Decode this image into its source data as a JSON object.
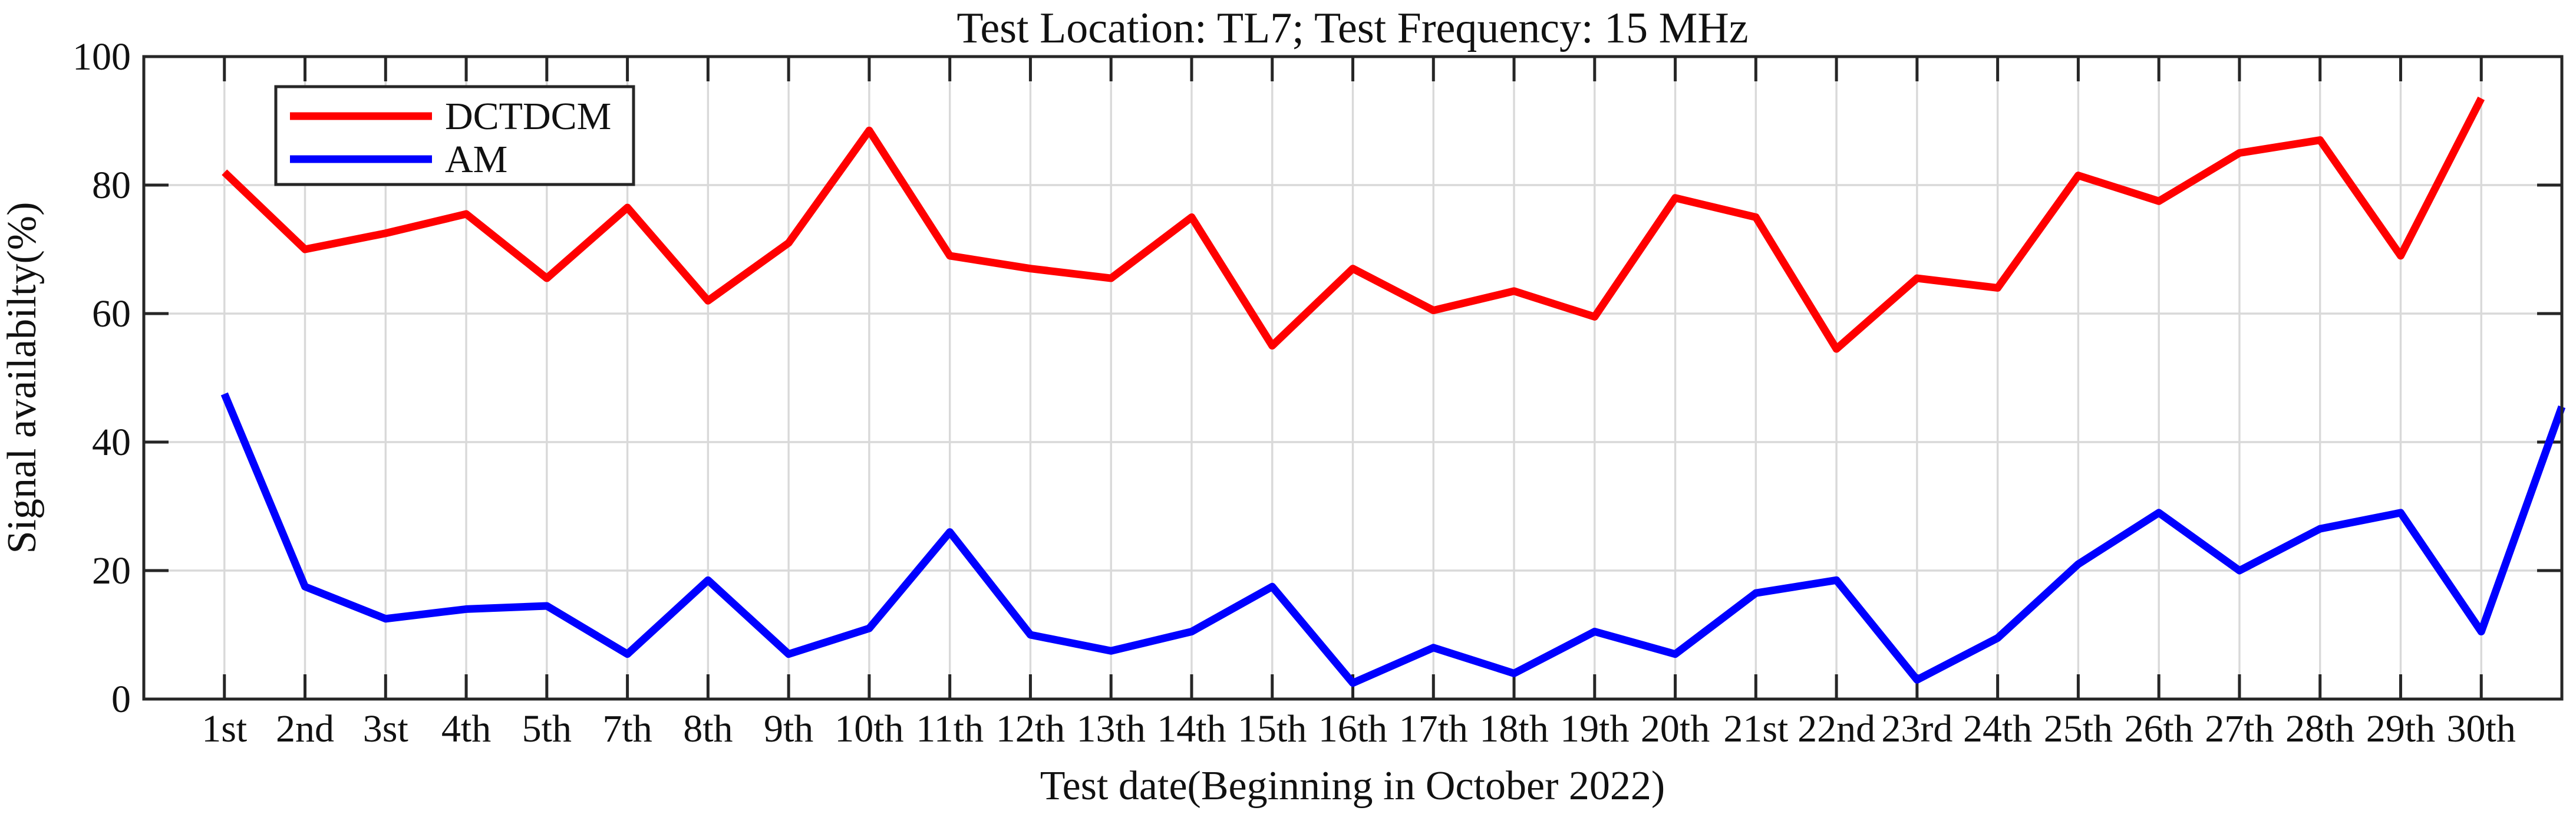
{
  "chart": {
    "title": "Test Location: TL7; Test Frequency: 15 MHz",
    "xlabel": "Test date(Beginning in October 2022)",
    "ylabel": "Signal availabilty(%)",
    "legend": {
      "position": "top-left",
      "entries": [
        "DCTDCM",
        "AM"
      ]
    }
  },
  "chart_data": {
    "type": "line",
    "title": "Test Location: TL7; Test Frequency: 15 MHz",
    "xlabel": "Test date(Beginning in October 2022)",
    "ylabel": "Signal availabilty(%)",
    "ylim": [
      0,
      100
    ],
    "yticks": [
      0,
      20,
      40,
      60,
      80,
      100
    ],
    "grid": "on",
    "grid_color": "#d9d9d9",
    "axis_color": "#262626",
    "background": "#ffffff",
    "legend_position": "top-left",
    "categories": [
      "1st",
      "2nd",
      "3st",
      "4th",
      "5th",
      "7th",
      "8th",
      "9th",
      "10th",
      "11th",
      "12th",
      "13th",
      "14th",
      "15th",
      "16th",
      "17th",
      "18th",
      "19th",
      "20th",
      "21st",
      "22nd",
      "23rd",
      "24th",
      "25th",
      "26th",
      "27th",
      "28th",
      "29th",
      "30th"
    ],
    "series": [
      {
        "name": "DCTDCM",
        "color": "#ff0000",
        "values": [
          82,
          70,
          72.5,
          75.5,
          65.5,
          76.5,
          62,
          71,
          88.5,
          69,
          67,
          65.5,
          75,
          55,
          67,
          60.5,
          63.5,
          59.5,
          78,
          75,
          54.5,
          65.5,
          64,
          81.5,
          77.5,
          85,
          87,
          69,
          93.5
        ]
      },
      {
        "name": "AM",
        "color": "#0000ff",
        "values": [
          47.5,
          17.5,
          12.5,
          14,
          14.5,
          7,
          18.5,
          7,
          11,
          26,
          10,
          7.5,
          10.5,
          17.5,
          2.5,
          8,
          4,
          10.5,
          7,
          16.5,
          18.5,
          3,
          9.5,
          21,
          29,
          20,
          26.5,
          29,
          10.5
        ],
        "right_edge_value": 45.5
      }
    ]
  }
}
